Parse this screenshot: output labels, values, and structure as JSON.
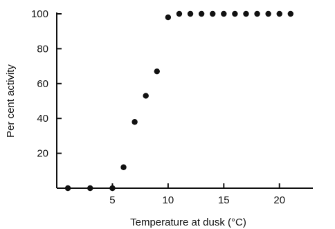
{
  "chart_data": {
    "type": "scatter",
    "title": "",
    "xlabel": "Temperature at dusk (°C)",
    "ylabel": "Per cent activity",
    "xlim": [
      0,
      23
    ],
    "ylim": [
      0,
      100
    ],
    "xticks": [
      5,
      10,
      15,
      20
    ],
    "yticks": [
      20,
      40,
      60,
      80,
      100
    ],
    "x_tick_labels": [
      "5",
      "10",
      "15",
      "20"
    ],
    "y_tick_labels": [
      "20",
      "40",
      "60",
      "80",
      "100"
    ],
    "grid": false,
    "series": [
      {
        "points": [
          [
            1,
            0
          ],
          [
            3,
            0
          ],
          [
            5,
            0
          ],
          [
            6,
            12
          ],
          [
            7,
            38
          ],
          [
            8,
            53
          ],
          [
            9,
            67
          ],
          [
            10,
            98
          ],
          [
            11,
            100
          ],
          [
            12,
            100
          ],
          [
            13,
            100
          ],
          [
            14,
            100
          ],
          [
            15,
            100
          ],
          [
            16,
            100
          ],
          [
            17,
            100
          ],
          [
            18,
            100
          ],
          [
            19,
            100
          ],
          [
            20,
            100
          ],
          [
            21,
            100
          ]
        ]
      }
    ],
    "colors": {
      "marker": "#111111",
      "axis": "#111111"
    }
  }
}
